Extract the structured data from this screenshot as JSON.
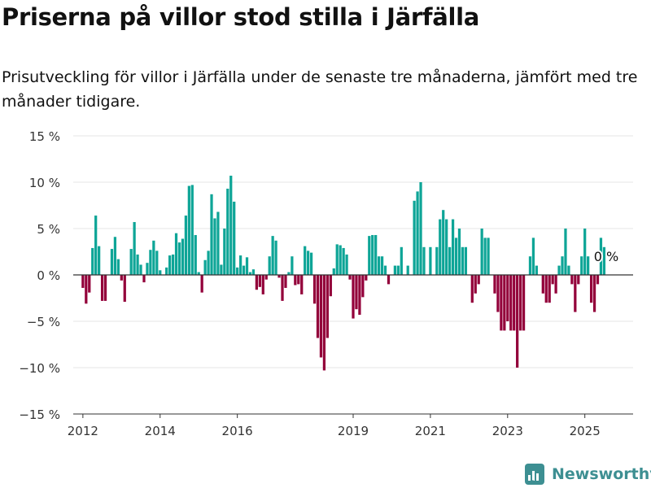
{
  "title": "Priserna på villor stod stilla i Järfälla",
  "subtitle": "Prisutveckling för villor i Järfälla under de senaste tre månaderna, jämfört med tre månader tidigare.",
  "brand": {
    "name": "Newsworthy",
    "icon": "newsworthy-logo-icon",
    "color": "#3d8f92"
  },
  "colors": {
    "positive": "#0ea597",
    "negative": "#93003a",
    "grid": "#e6e6e6",
    "axis": "#333333"
  },
  "chart_data": {
    "type": "bar",
    "unit": "%",
    "ylim": [
      -15,
      15
    ],
    "yticks": [
      15,
      10,
      5,
      0,
      -5,
      -10,
      -15
    ],
    "ytick_labels": [
      "15 %",
      "10 %",
      "5 %",
      "0 %",
      "−5 %",
      "−10 %",
      "−15 %"
    ],
    "x_start": 2011.75,
    "x_end": 2026.25,
    "xticks": [
      2012,
      2014,
      2016,
      2019,
      2021,
      2023,
      2025
    ],
    "xtick_labels": [
      "2012",
      "2014",
      "2016",
      "2019",
      "2021",
      "2023",
      "2025"
    ],
    "grid": true,
    "annotation": "0 %",
    "series": [
      {
        "x_start_month": "2012-01",
        "step": "month",
        "values": [
          -1.4,
          -3.1,
          -1.9,
          2.9,
          6.4,
          3.1,
          -2.8,
          -2.8,
          0,
          2.8,
          4.1,
          1.7,
          -0.6,
          -2.9,
          0,
          2.8,
          5.7,
          2.2,
          1.1,
          -0.8,
          1.3,
          2.7,
          3.7,
          2.6,
          0.5,
          0,
          0.8,
          2.1,
          2.2,
          4.5,
          3.5,
          3.9,
          6.4,
          9.6,
          9.7,
          4.3,
          0.3,
          -1.9,
          1.6,
          2.6,
          8.7,
          6.1,
          6.8,
          1.1,
          5,
          9.3,
          10.7,
          7.9,
          0.8,
          2.1,
          1,
          1.9,
          0.3,
          0.6,
          -1.6,
          -1.3,
          -2.1,
          -0.5,
          2,
          4.2,
          3.7,
          -0.3,
          -2.8,
          -1.4,
          0.3,
          2,
          -1.1,
          -1,
          -2.1,
          3.1,
          2.6,
          2.4,
          -3.1,
          -6.8,
          -8.9,
          -10.3,
          -6.8,
          -2.3,
          0.7,
          3.3,
          3.2,
          2.9,
          2.2,
          -0.5,
          -4.7,
          -3.7,
          -4.3,
          -2.4,
          -0.6,
          4.2,
          4.3,
          4.3,
          2,
          2,
          1,
          -1,
          0,
          1,
          1,
          3,
          0,
          1,
          0,
          8,
          9,
          10,
          3,
          0,
          3,
          0,
          3,
          6,
          7,
          6,
          3,
          6,
          4,
          5,
          3,
          3,
          0,
          -3,
          -2,
          -1,
          5,
          4,
          4,
          0,
          -2,
          -4,
          -6,
          -6,
          -5,
          -6,
          -6,
          -10,
          -6,
          -6,
          0,
          2,
          4,
          1,
          0,
          -2,
          -3,
          -3,
          -1,
          -2,
          1,
          2,
          5,
          1,
          -1,
          -4,
          -1,
          2,
          5,
          2,
          -3,
          -4,
          -1,
          4,
          3,
          0
        ]
      }
    ]
  }
}
